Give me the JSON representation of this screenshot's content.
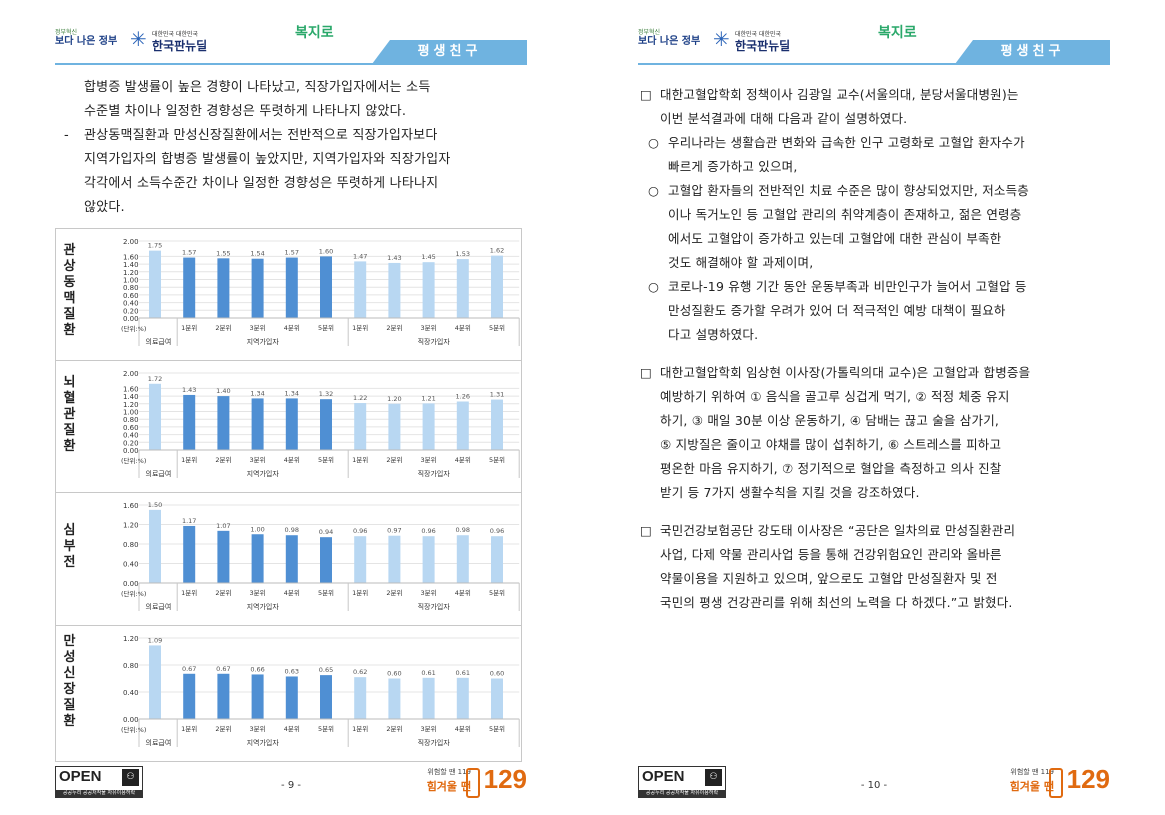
{
  "left_page": {
    "header": {
      "logo_gov_l1": "정부혁신",
      "logo_gov_l2": "보다 나은 정부",
      "logo_korea_l1": "대한민국 대한민국",
      "logo_korea_l2": "한국판뉴딜",
      "logo_bokji": "복지로",
      "tab_label": "평생친구"
    },
    "text": {
      "lines1": [
        "합병증 발생률이 높은 경향이 나타났고, 직장가입자에서는 소득",
        "수준별 차이나 일정한 경향성은 뚜렷하게 나타나지 않았다."
      ],
      "dash": "-",
      "lines2": [
        "관상동맥질환과 만성신장질환에서는 전반적으로 직장가입자보다",
        "지역가입자의 합병증 발생률이 높았지만, 지역가입자와 직장가입자",
        "각각에서 소득수준간 차이나 일정한 경향성은 뚜렷하게 나타나지",
        "않았다."
      ]
    },
    "footer": {
      "open_text": "OPEN",
      "open_strip": "공공누리 공공저작물 자유이용허락",
      "page_number": "- 9 -",
      "hotline_small": "위험할 땐 119",
      "hotline_main": "힘겨울 땐",
      "hotline_num": "129"
    }
  },
  "right_page": {
    "header": {
      "logo_gov_l1": "정부혁신",
      "logo_gov_l2": "보다 나은 정부",
      "logo_korea_l1": "대한민국 대한민국",
      "logo_korea_l2": "한국판뉴딜",
      "logo_bokji": "복지로",
      "tab_label": "평생친구"
    },
    "sections": [
      {
        "marker": "□",
        "lines": [
          "대한고혈압학회 정책이사 김광일 교수(서울의대, 분당서울대병원)는",
          "이번 분석결과에 대해 다음과 같이 설명하였다."
        ]
      },
      {
        "marker": "○",
        "lines": [
          "우리나라는 생활습관 변화와 급속한 인구 고령화로 고혈압 환자수가",
          "빠르게 증가하고 있으며,"
        ]
      },
      {
        "marker": "○",
        "lines": [
          "고혈압 환자들의 전반적인 치료 수준은 많이 향상되었지만, 저소득층",
          "이나 독거노인 등 고혈압 관리의 취약계층이 존재하고, 젊은 연령층",
          "에서도 고혈압이 증가하고 있는데 고혈압에 대한 관심이 부족한",
          "것도 해결해야 할 과제이며,"
        ]
      },
      {
        "marker": "○",
        "lines": [
          "코로나-19 유행 기간 동안 운동부족과 비만인구가 늘어서 고혈압 등",
          "만성질환도 증가할 우려가 있어 더 적극적인 예방 대책이 필요하",
          "다고 설명하였다."
        ]
      },
      {
        "marker": "□",
        "lines": [
          "대한고혈압학회 임상현 이사장(가톨릭의대 교수)은 고혈압과 합병증을",
          "예방하기 위하여 ① 음식을 골고루 싱겁게 먹기, ② 적정 체중 유지",
          "하기, ③ 매일 30분 이상 운동하기, ④ 담배는 끊고 술을 삼가기,",
          "⑤ 지방질은 줄이고 야채를 많이 섭취하기, ⑥ 스트레스를 피하고",
          "평온한 마음 유지하기, ⑦ 정기적으로 혈압을 측정하고 의사 진찰",
          "받기 등 7가지 생활수칙을 지킬 것을 강조하였다."
        ]
      },
      {
        "marker": "□",
        "lines": [
          "국민건강보험공단 강도태 이사장은 “공단은 일차의료 만성질환관리",
          "사업, 다제 약물 관리사업 등을 통해 건강위험요인 관리와 올바른",
          "약물이용을 지원하고 있으며, 앞으로도 고혈압 만성질환자 및 전",
          "국민의 평생 건강관리를 위해 최선의 노력을 다 하겠다.”고 밝혔다."
        ]
      }
    ],
    "footer": {
      "open_text": "OPEN",
      "open_strip": "공공누리 공공저작물 자유이용허락",
      "page_number": "- 10 -",
      "hotline_small": "위험할 땐 119",
      "hotline_main": "힘겨울 땐",
      "hotline_num": "129"
    }
  },
  "chart_data": [
    {
      "type": "bar",
      "title": "관상동맥질환",
      "unit_label": "(단위:%)",
      "categories": [
        "",
        "1분위",
        "2분위",
        "3분위",
        "4분위",
        "5분위",
        "1분위",
        "2분위",
        "3분위",
        "4분위",
        "5분위"
      ],
      "groups": [
        "의료급여",
        "지역가입자",
        "직장가입자"
      ],
      "values": [
        1.75,
        1.57,
        1.55,
        1.54,
        1.57,
        1.6,
        1.47,
        1.43,
        1.45,
        1.53,
        1.62
      ],
      "value_labels": [
        "1.75",
        "1.57",
        "1.55",
        "1.54",
        "1.57",
        "1.60",
        "1.47",
        "1.43",
        "1.45",
        "1.53",
        "1.62"
      ],
      "yticks": [
        "2.00",
        "1.60",
        "1.40",
        "1.20",
        "1.00",
        "0.80",
        "0.60",
        "0.40",
        "0.20",
        "0.00"
      ],
      "ylim": [
        0,
        2.0
      ],
      "grid": true,
      "colors": {
        "medical": "#b8d7f2",
        "regional": "#4f8fd3",
        "workplace": "#b8d7f2"
      }
    },
    {
      "type": "bar",
      "title": "뇌혈관질환",
      "unit_label": "(단위:%)",
      "categories": [
        "",
        "1분위",
        "2분위",
        "3분위",
        "4분위",
        "5분위",
        "1분위",
        "2분위",
        "3분위",
        "4분위",
        "5분위"
      ],
      "groups": [
        "의료급여",
        "지역가입자",
        "직장가입자"
      ],
      "values": [
        1.72,
        1.43,
        1.4,
        1.34,
        1.34,
        1.32,
        1.22,
        1.2,
        1.21,
        1.26,
        1.31
      ],
      "value_labels": [
        "1.72",
        "1.43",
        "1.40",
        "1.34",
        "1.34",
        "1.32",
        "1.22",
        "1.20",
        "1.21",
        "1.26",
        "1.31"
      ],
      "yticks": [
        "2.00",
        "1.60",
        "1.40",
        "1.20",
        "1.00",
        "0.80",
        "0.60",
        "0.40",
        "0.20",
        "0.00"
      ],
      "ylim": [
        0,
        2.0
      ],
      "grid": true,
      "colors": {
        "medical": "#b8d7f2",
        "regional": "#4f8fd3",
        "workplace": "#b8d7f2"
      }
    },
    {
      "type": "bar",
      "title": "심부전",
      "unit_label": "(단위:%)",
      "categories": [
        "",
        "1분위",
        "2분위",
        "3분위",
        "4분위",
        "5분위",
        "1분위",
        "2분위",
        "3분위",
        "4분위",
        "5분위"
      ],
      "groups": [
        "의료급여",
        "지역가입자",
        "직장가입자"
      ],
      "values": [
        1.5,
        1.17,
        1.07,
        1.0,
        0.98,
        0.94,
        0.96,
        0.97,
        0.96,
        0.98,
        0.96
      ],
      "value_labels": [
        "1.50",
        "1.17",
        "1.07",
        "1.00",
        "0.98",
        "0.94",
        "0.96",
        "0.97",
        "0.96",
        "0.98",
        "0.96"
      ],
      "yticks": [
        "1.60",
        "1.20",
        "0.80",
        "0.40",
        "0.00"
      ],
      "ylim": [
        0,
        1.6
      ],
      "grid": true,
      "colors": {
        "medical": "#b8d7f2",
        "regional": "#4f8fd3",
        "workplace": "#b8d7f2"
      }
    },
    {
      "type": "bar",
      "title": "만성신장질환",
      "unit_label": "(단위:%)",
      "categories": [
        "",
        "1분위",
        "2분위",
        "3분위",
        "4분위",
        "5분위",
        "1분위",
        "2분위",
        "3분위",
        "4분위",
        "5분위"
      ],
      "groups": [
        "의료급여",
        "지역가입자",
        "직장가입자"
      ],
      "values": [
        1.09,
        0.67,
        0.67,
        0.66,
        0.63,
        0.65,
        0.62,
        0.6,
        0.61,
        0.61,
        0.6
      ],
      "value_labels": [
        "1.09",
        "0.67",
        "0.67",
        "0.66",
        "0.63",
        "0.65",
        "0.62",
        "0.60",
        "0.61",
        "0.61",
        "0.60"
      ],
      "yticks": [
        "1.20",
        "0.80",
        "0.40",
        "0.00"
      ],
      "ylim": [
        0,
        1.2
      ],
      "grid": true,
      "colors": {
        "medical": "#b8d7f2",
        "regional": "#4f8fd3",
        "workplace": "#b8d7f2"
      }
    }
  ]
}
